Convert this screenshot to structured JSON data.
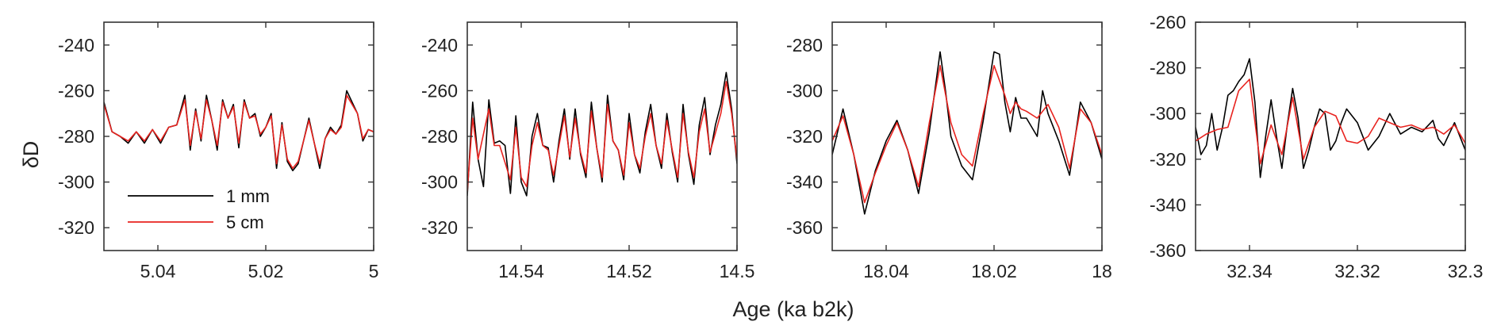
{
  "figure": {
    "xlabel": "Age (ka b2k)",
    "ylabel": "δD",
    "colors": {
      "1 mm": "#000000",
      "5 cm": "#e8231f",
      "axis": "#333333"
    }
  },
  "legend": {
    "placement": "lower-left of first panel",
    "entries": [
      {
        "label": "1 mm",
        "color": "#000000"
      },
      {
        "label": "5 cm",
        "color": "#e8231f"
      }
    ]
  },
  "chart_data": [
    {
      "type": "line",
      "xlim": [
        5.05,
        5.0
      ],
      "x_reversed": true,
      "ylim": [
        -330,
        -230
      ],
      "xticks": [
        5.04,
        5.02,
        5.0
      ],
      "xtick_labels": [
        "5.04",
        "5.02",
        "5"
      ],
      "yticks": [
        -240,
        -260,
        -280,
        -300,
        -320
      ],
      "ytick_labels": [
        "-240",
        "-260",
        "-280",
        "-300",
        "-320"
      ],
      "series": [
        {
          "name": "1 mm",
          "color": "#000000",
          "x": [
            5.05,
            5.0485,
            5.047,
            5.0455,
            5.044,
            5.0425,
            5.041,
            5.0395,
            5.038,
            5.0365,
            5.035,
            5.034,
            5.033,
            5.032,
            5.031,
            5.03,
            5.029,
            5.028,
            5.027,
            5.026,
            5.025,
            5.024,
            5.023,
            5.022,
            5.021,
            5.02,
            5.019,
            5.018,
            5.017,
            5.016,
            5.015,
            5.014,
            5.013,
            5.012,
            5.011,
            5.01,
            5.009,
            5.008,
            5.007,
            5.006,
            5.005,
            5.004,
            5.003,
            5.002,
            5.001,
            5.0
          ],
          "y": [
            -265,
            -278,
            -280,
            -283,
            -278,
            -283,
            -277,
            -283,
            -276,
            -275,
            -262,
            -286,
            -268,
            -282,
            -262,
            -273,
            -286,
            -264,
            -272,
            -266,
            -285,
            -264,
            -272,
            -270,
            -280,
            -276,
            -270,
            -294,
            -274,
            -291,
            -295,
            -292,
            -282,
            -272,
            -283,
            -294,
            -281,
            -276,
            -279,
            -275,
            -260,
            -265,
            -270,
            -282,
            -277,
            -278
          ]
        },
        {
          "name": "5 cm",
          "color": "#e8231f",
          "x": [
            5.05,
            5.0485,
            5.047,
            5.0455,
            5.044,
            5.0425,
            5.041,
            5.0395,
            5.038,
            5.0365,
            5.035,
            5.034,
            5.033,
            5.032,
            5.031,
            5.03,
            5.029,
            5.028,
            5.027,
            5.026,
            5.025,
            5.024,
            5.023,
            5.022,
            5.021,
            5.02,
            5.019,
            5.018,
            5.017,
            5.016,
            5.015,
            5.014,
            5.013,
            5.012,
            5.011,
            5.01,
            5.009,
            5.008,
            5.007,
            5.006,
            5.005,
            5.004,
            5.003,
            5.002,
            5.001,
            5.0
          ],
          "y": [
            -266,
            -278,
            -280,
            -282,
            -278,
            -282,
            -277,
            -282,
            -276,
            -275,
            -264,
            -284,
            -269,
            -281,
            -264,
            -273,
            -284,
            -265,
            -272,
            -267,
            -283,
            -265,
            -272,
            -271,
            -279,
            -276,
            -271,
            -292,
            -275,
            -290,
            -294,
            -291,
            -282,
            -273,
            -283,
            -292,
            -281,
            -277,
            -279,
            -276,
            -262,
            -266,
            -270,
            -281,
            -277,
            -278
          ]
        }
      ]
    },
    {
      "type": "line",
      "xlim": [
        14.55,
        14.5
      ],
      "x_reversed": true,
      "ylim": [
        -330,
        -230
      ],
      "xticks": [
        14.54,
        14.52,
        14.5
      ],
      "xtick_labels": [
        "14.54",
        "14.52",
        "14.5"
      ],
      "yticks": [
        -240,
        -260,
        -280,
        -300,
        -320
      ],
      "ytick_labels": [
        "-240",
        "-260",
        "-280",
        "-300",
        "-320"
      ],
      "series": [
        {
          "name": "1 mm",
          "color": "#000000",
          "x": [
            14.55,
            14.549,
            14.548,
            14.547,
            14.546,
            14.545,
            14.544,
            14.543,
            14.542,
            14.541,
            14.54,
            14.539,
            14.538,
            14.537,
            14.536,
            14.535,
            14.534,
            14.533,
            14.532,
            14.531,
            14.53,
            14.529,
            14.528,
            14.527,
            14.526,
            14.525,
            14.524,
            14.523,
            14.522,
            14.521,
            14.52,
            14.519,
            14.518,
            14.517,
            14.516,
            14.515,
            14.514,
            14.513,
            14.512,
            14.511,
            14.51,
            14.509,
            14.508,
            14.507,
            14.506,
            14.505,
            14.504,
            14.503,
            14.502,
            14.501,
            14.5
          ],
          "y": [
            -306,
            -265,
            -290,
            -302,
            -264,
            -283,
            -282,
            -284,
            -305,
            -271,
            -300,
            -306,
            -280,
            -270,
            -284,
            -285,
            -300,
            -282,
            -268,
            -290,
            -268,
            -288,
            -298,
            -265,
            -285,
            -300,
            -262,
            -282,
            -286,
            -299,
            -270,
            -288,
            -296,
            -278,
            -266,
            -284,
            -294,
            -270,
            -287,
            -300,
            -266,
            -288,
            -301,
            -275,
            -263,
            -288,
            -275,
            -266,
            -252,
            -268,
            -292
          ]
        },
        {
          "name": "5 cm",
          "color": "#e8231f",
          "x": [
            14.55,
            14.549,
            14.548,
            14.546,
            14.545,
            14.544,
            14.542,
            14.541,
            14.54,
            14.539,
            14.538,
            14.537,
            14.536,
            14.535,
            14.534,
            14.533,
            14.532,
            14.531,
            14.53,
            14.529,
            14.528,
            14.527,
            14.526,
            14.525,
            14.524,
            14.523,
            14.522,
            14.521,
            14.52,
            14.519,
            14.518,
            14.517,
            14.516,
            14.515,
            14.514,
            14.513,
            14.512,
            14.511,
            14.51,
            14.509,
            14.508,
            14.507,
            14.506,
            14.505,
            14.503,
            14.502,
            14.501,
            14.5
          ],
          "y": [
            -304,
            -272,
            -290,
            -268,
            -284,
            -284,
            -299,
            -276,
            -298,
            -302,
            -284,
            -274,
            -284,
            -286,
            -297,
            -284,
            -271,
            -289,
            -272,
            -287,
            -296,
            -269,
            -285,
            -298,
            -266,
            -282,
            -286,
            -297,
            -274,
            -288,
            -294,
            -280,
            -270,
            -284,
            -292,
            -273,
            -286,
            -298,
            -270,
            -287,
            -298,
            -278,
            -268,
            -287,
            -270,
            -256,
            -270,
            -290
          ]
        }
      ]
    },
    {
      "type": "line",
      "xlim": [
        18.05,
        18.0
      ],
      "x_reversed": true,
      "ylim": [
        -370,
        -270
      ],
      "xticks": [
        18.04,
        18.02,
        18.0
      ],
      "xtick_labels": [
        "18.04",
        "18.02",
        "18"
      ],
      "yticks": [
        -280,
        -300,
        -320,
        -340,
        -360
      ],
      "ytick_labels": [
        "-280",
        "-300",
        "-320",
        "-340",
        "-360"
      ],
      "series": [
        {
          "name": "1 mm",
          "color": "#000000",
          "x": [
            18.05,
            18.048,
            18.046,
            18.044,
            18.042,
            18.04,
            18.038,
            18.036,
            18.034,
            18.032,
            18.03,
            18.029,
            18.028,
            18.026,
            18.024,
            18.022,
            18.02,
            18.019,
            18.018,
            18.017,
            18.016,
            18.015,
            18.014,
            18.012,
            18.011,
            18.01,
            18.008,
            18.006,
            18.004,
            18.002,
            18.0
          ],
          "y": [
            -328,
            -308,
            -328,
            -354,
            -335,
            -322,
            -313,
            -326,
            -345,
            -318,
            -283,
            -300,
            -320,
            -333,
            -339,
            -313,
            -283,
            -284,
            -305,
            -318,
            -303,
            -312,
            -312,
            -320,
            -300,
            -310,
            -322,
            -337,
            -305,
            -314,
            -330
          ]
        },
        {
          "name": "5 cm",
          "color": "#e8231f",
          "x": [
            18.05,
            18.048,
            18.046,
            18.044,
            18.042,
            18.04,
            18.038,
            18.036,
            18.034,
            18.032,
            18.03,
            18.028,
            18.026,
            18.024,
            18.022,
            18.02,
            18.018,
            18.017,
            18.016,
            18.015,
            18.014,
            18.012,
            18.01,
            18.008,
            18.006,
            18.004,
            18.002,
            18.0
          ],
          "y": [
            -322,
            -311,
            -328,
            -349,
            -336,
            -324,
            -314,
            -326,
            -342,
            -314,
            -289,
            -314,
            -328,
            -333,
            -310,
            -289,
            -302,
            -310,
            -305,
            -308,
            -309,
            -312,
            -306,
            -316,
            -334,
            -308,
            -314,
            -328
          ]
        }
      ]
    },
    {
      "type": "line",
      "xlim": [
        32.35,
        32.3
      ],
      "x_reversed": true,
      "ylim": [
        -360,
        -260
      ],
      "xticks": [
        32.34,
        32.32,
        32.3
      ],
      "xtick_labels": [
        "32.34",
        "32.32",
        "32.3"
      ],
      "yticks": [
        -260,
        -280,
        -300,
        -320,
        -340,
        -360
      ],
      "ytick_labels": [
        "-260",
        "-280",
        "-300",
        "-320",
        "-340",
        "-360"
      ],
      "series": [
        {
          "name": "1 mm",
          "color": "#000000",
          "x": [
            32.35,
            32.349,
            32.348,
            32.347,
            32.346,
            32.345,
            32.344,
            32.343,
            32.342,
            32.341,
            32.34,
            32.339,
            32.338,
            32.337,
            32.336,
            32.335,
            32.334,
            32.333,
            32.332,
            32.331,
            32.33,
            32.329,
            32.328,
            32.327,
            32.326,
            32.325,
            32.324,
            32.323,
            32.322,
            32.32,
            32.318,
            32.316,
            32.314,
            32.312,
            32.31,
            32.308,
            32.306,
            32.305,
            32.304,
            32.302,
            32.3
          ],
          "y": [
            -306,
            -318,
            -314,
            -300,
            -316,
            -306,
            -292,
            -290,
            -286,
            -283,
            -276,
            -295,
            -328,
            -310,
            -294,
            -310,
            -324,
            -305,
            -289,
            -302,
            -324,
            -316,
            -306,
            -298,
            -300,
            -316,
            -312,
            -304,
            -298,
            -304,
            -316,
            -310,
            -300,
            -309,
            -306,
            -308,
            -303,
            -311,
            -314,
            -304,
            -316
          ]
        },
        {
          "name": "5 cm",
          "color": "#e8231f",
          "x": [
            32.35,
            32.348,
            32.346,
            32.344,
            32.342,
            32.34,
            32.338,
            32.336,
            32.334,
            32.332,
            32.33,
            32.328,
            32.326,
            32.324,
            32.322,
            32.32,
            32.318,
            32.316,
            32.314,
            32.312,
            32.31,
            32.308,
            32.306,
            32.304,
            32.302,
            32.3
          ],
          "y": [
            -312,
            -309,
            -307,
            -306,
            -290,
            -285,
            -322,
            -305,
            -318,
            -293,
            -320,
            -306,
            -299,
            -301,
            -312,
            -313,
            -310,
            -302,
            -304,
            -306,
            -305,
            -307,
            -306,
            -309,
            -305,
            -313
          ]
        }
      ]
    }
  ]
}
